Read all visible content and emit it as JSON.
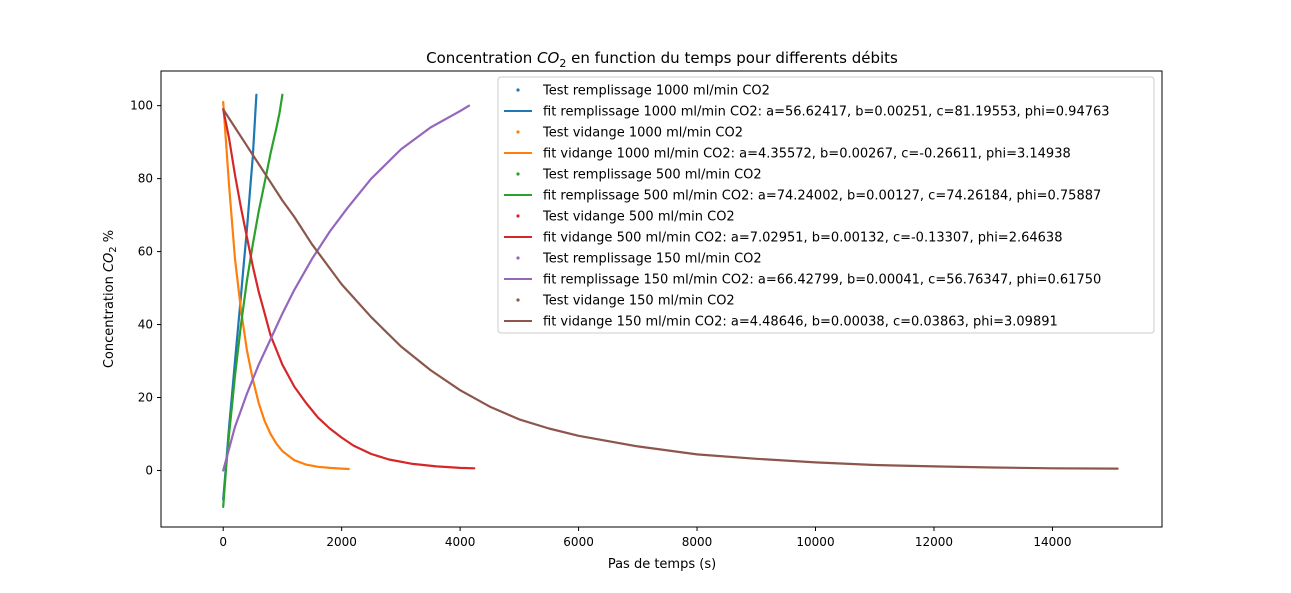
{
  "chart_data": {
    "type": "line",
    "title": {
      "prefix": "Concentration ",
      "var": "CO",
      "sub": "2",
      "suffix": " en function du temps pour differents débits"
    },
    "xlabel": "Pas de temps (s)",
    "ylabel": {
      "prefix": "Concentration ",
      "var": "CO",
      "sub": "2",
      "suffix": " %"
    },
    "xlim": [
      -1050,
      15850
    ],
    "ylim": [
      -15.5,
      109.5
    ],
    "xticks": [
      0,
      2000,
      4000,
      6000,
      8000,
      10000,
      12000,
      14000
    ],
    "yticks": [
      0,
      20,
      40,
      60,
      80,
      100
    ],
    "grid": false,
    "legend_position": "top-right",
    "legend": [
      {
        "label": "Test remplissage 1000 ml/min CO2",
        "kind": "marker",
        "color": "#1f77b4"
      },
      {
        "label": "fit remplissage 1000 ml/min CO2: a=56.62417, b=0.00251, c=81.19553, phi=0.94763",
        "kind": "line",
        "color": "#1f77b4"
      },
      {
        "label": "Test vidange 1000 ml/min CO2",
        "kind": "marker",
        "color": "#ff7f0e"
      },
      {
        "label": "fit vidange 1000 ml/min CO2: a=4.35572, b=0.00267, c=-0.26611, phi=3.14938",
        "kind": "line",
        "color": "#ff7f0e"
      },
      {
        "label": "Test remplissage 500 ml/min CO2",
        "kind": "marker",
        "color": "#2ca02c"
      },
      {
        "label": "fit remplissage 500 ml/min CO2: a=74.24002, b=0.00127, c=74.26184, phi=0.75887",
        "kind": "line",
        "color": "#2ca02c"
      },
      {
        "label": "Test vidange 500 ml/min CO2",
        "kind": "marker",
        "color": "#d62728"
      },
      {
        "label": "fit vidange 500 ml/min CO2: a=7.02951, b=0.00132, c=-0.13307, phi=2.64638",
        "kind": "line",
        "color": "#d62728"
      },
      {
        "label": "Test remplissage 150 ml/min CO2",
        "kind": "marker",
        "color": "#9467bd"
      },
      {
        "label": "fit remplissage 150 ml/min CO2: a=66.42799, b=0.00041, c=56.76347, phi=0.61750",
        "kind": "line",
        "color": "#9467bd"
      },
      {
        "label": "Test vidange 150 ml/min CO2",
        "kind": "marker",
        "color": "#8c564b"
      },
      {
        "label": "fit vidange 150 ml/min CO2: a=4.48646, b=0.00038, c=0.03863, phi=3.09891",
        "kind": "line",
        "color": "#8c564b"
      }
    ],
    "series": [
      {
        "name": "fit remplissage 1000 ml/min CO2",
        "color": "#1f77b4",
        "x": [
          0,
          50,
          100,
          150,
          200,
          250,
          300,
          350,
          400,
          450,
          500,
          560
        ],
        "y": [
          -8,
          2,
          12,
          21,
          30,
          39,
          48,
          57,
          66,
          76,
          86,
          103
        ]
      },
      {
        "name": "fit vidange 1000 ml/min CO2",
        "color": "#ff7f0e",
        "x": [
          0,
          100,
          200,
          300,
          400,
          500,
          600,
          700,
          800,
          900,
          1000,
          1200,
          1400,
          1600,
          1800,
          2000,
          2120
        ],
        "y": [
          101,
          78,
          58,
          44,
          33,
          25,
          18.5,
          13.5,
          10,
          7.3,
          5.3,
          2.8,
          1.6,
          1.0,
          0.7,
          0.5,
          0.4
        ]
      },
      {
        "name": "fit remplissage 500 ml/min CO2",
        "color": "#2ca02c",
        "x": [
          0,
          50,
          100,
          150,
          200,
          300,
          400,
          500,
          600,
          700,
          800,
          900,
          950,
          1000
        ],
        "y": [
          -10,
          1,
          10,
          18,
          26,
          40,
          52,
          62,
          71,
          79,
          87,
          94,
          98,
          103
        ]
      },
      {
        "name": "fit vidange 500 ml/min CO2",
        "color": "#d62728",
        "x": [
          0,
          100,
          200,
          300,
          400,
          500,
          600,
          700,
          800,
          900,
          1000,
          1200,
          1400,
          1600,
          1800,
          2000,
          2200,
          2500,
          2800,
          3200,
          3600,
          4000,
          4240
        ],
        "y": [
          99,
          91,
          81,
          72,
          64,
          56,
          49,
          43,
          37,
          33,
          29,
          23,
          18.5,
          14.5,
          11.5,
          9,
          6.8,
          4.5,
          3,
          1.8,
          1.1,
          0.7,
          0.6
        ]
      },
      {
        "name": "fit remplissage 150 ml/min CO2",
        "color": "#9467bd",
        "x": [
          0,
          100,
          200,
          300,
          400,
          500,
          600,
          800,
          1000,
          1200,
          1500,
          1800,
          2100,
          2500,
          3000,
          3500,
          4000,
          4150
        ],
        "y": [
          0,
          6,
          12,
          16.5,
          21,
          25,
          29,
          36,
          43,
          49.5,
          58,
          65.5,
          72,
          80,
          88,
          94,
          98.5,
          100
        ]
      },
      {
        "name": "fit vidange 150 ml/min CO2",
        "color": "#8c564b",
        "x": [
          0,
          200,
          400,
          600,
          800,
          1000,
          1200,
          1500,
          2000,
          2500,
          3000,
          3500,
          4000,
          4500,
          5000,
          5500,
          6000,
          7000,
          8000,
          9000,
          10000,
          11000,
          12000,
          13000,
          14000,
          15100
        ],
        "y": [
          99,
          94,
          89,
          84,
          79,
          74,
          69.5,
          62,
          51,
          42,
          34,
          27.5,
          22,
          17.5,
          14,
          11.5,
          9.5,
          6.6,
          4.4,
          3.2,
          2.2,
          1.5,
          1.1,
          0.8,
          0.6,
          0.5
        ]
      }
    ]
  }
}
